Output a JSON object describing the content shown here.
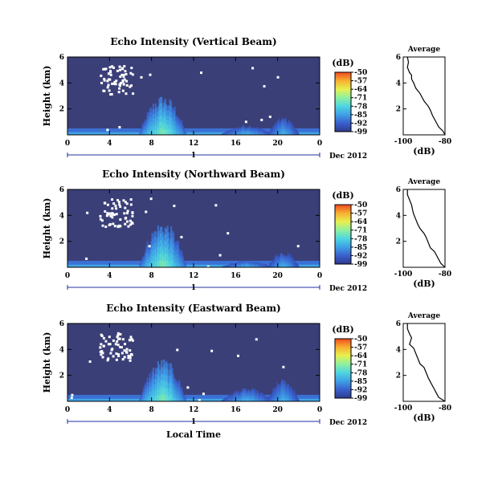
{
  "chart_data": [
    {
      "type": "heatmap",
      "title": "Echo Intensity (Vertical Beam)",
      "ylabel": "Height (km)",
      "xlabel": "",
      "x_ticks": [
        "0",
        "4",
        "8",
        "12",
        "16",
        "20",
        "0"
      ],
      "y_ticks": [
        "2",
        "4",
        "6"
      ],
      "xlim": [
        0,
        24
      ],
      "ylim": [
        0,
        6
      ],
      "day_label": "1",
      "date_label": "Dec 2012",
      "units_label": "(dB)",
      "colorbar_ticks": [
        "-50",
        "-57",
        "-64",
        "-71",
        "-78",
        "-85",
        "-92",
        "-99"
      ],
      "colorbar_colors": [
        "#2e3a8c",
        "#3a5fcd",
        "#3ea0e6",
        "#4fd6e0",
        "#8ef0a0",
        "#e8f050",
        "#f8b030",
        "#f04a20"
      ],
      "background_color": "#3b3f78",
      "blobs": [
        {
          "x": 9.0,
          "h": 3.6,
          "w": 4.5,
          "level": 0.55
        },
        {
          "x": 17.0,
          "h": 0.9,
          "w": 5.0,
          "level": 0.35
        },
        {
          "x": 20.5,
          "h": 1.6,
          "w": 3.0,
          "level": 0.35
        }
      ],
      "average": {
        "title": "Average",
        "xlabel": "(dB)",
        "x_ticks": [
          "-100",
          "-80"
        ],
        "y_ticks": [
          "2",
          "4",
          "6"
        ],
        "xlim": [
          -100,
          -80
        ],
        "points": [
          [
            -98,
            6.0
          ],
          [
            -97.5,
            5.6
          ],
          [
            -98,
            5.2
          ],
          [
            -97,
            4.8
          ],
          [
            -96,
            4.6
          ],
          [
            -96,
            4.3
          ],
          [
            -95,
            4.0
          ],
          [
            -94,
            3.6
          ],
          [
            -92,
            3.2
          ],
          [
            -91,
            2.9
          ],
          [
            -90,
            2.6
          ],
          [
            -88,
            2.2
          ],
          [
            -87,
            1.9
          ],
          [
            -86,
            1.5
          ],
          [
            -85,
            1.2
          ],
          [
            -84,
            0.9
          ],
          [
            -83,
            0.6
          ],
          [
            -81,
            0.3
          ],
          [
            -80,
            0.0
          ]
        ]
      }
    },
    {
      "type": "heatmap",
      "title": "Echo Intensity (Northward Beam)",
      "ylabel": "Height (km)",
      "xlabel": "",
      "x_ticks": [
        "0",
        "4",
        "8",
        "12",
        "16",
        "20",
        "0"
      ],
      "y_ticks": [
        "2",
        "4",
        "6"
      ],
      "xlim": [
        0,
        24
      ],
      "ylim": [
        0,
        6
      ],
      "day_label": "1",
      "date_label": "Dec 2012",
      "units_label": "(dB)",
      "colorbar_ticks": [
        "-50",
        "-57",
        "-64",
        "-71",
        "-78",
        "-85",
        "-92",
        "-99"
      ],
      "colorbar_colors": [
        "#2e3a8c",
        "#3a5fcd",
        "#3ea0e6",
        "#4fd6e0",
        "#8ef0a0",
        "#e8f050",
        "#f8b030",
        "#f04a20"
      ],
      "background_color": "#3b3f78",
      "blobs": [
        {
          "x": 9.0,
          "h": 4.2,
          "w": 4.5,
          "level": 0.55
        },
        {
          "x": 17.0,
          "h": 0.6,
          "w": 5.0,
          "level": 0.35
        },
        {
          "x": 20.5,
          "h": 1.5,
          "w": 3.0,
          "level": 0.35
        }
      ],
      "average": {
        "title": "Average",
        "xlabel": "(dB)",
        "x_ticks": [
          "-100",
          "-80"
        ],
        "y_ticks": [
          "2",
          "4",
          "6"
        ],
        "xlim": [
          -100,
          -80
        ],
        "points": [
          [
            -98,
            6.0
          ],
          [
            -98,
            5.6
          ],
          [
            -97,
            5.2
          ],
          [
            -96,
            4.8
          ],
          [
            -95.5,
            4.4
          ],
          [
            -95,
            4.1
          ],
          [
            -94,
            3.7
          ],
          [
            -93,
            3.3
          ],
          [
            -92,
            3.0
          ],
          [
            -90,
            2.6
          ],
          [
            -89,
            2.3
          ],
          [
            -88,
            1.9
          ],
          [
            -87,
            1.5
          ],
          [
            -85,
            1.2
          ],
          [
            -84,
            0.9
          ],
          [
            -83,
            0.6
          ],
          [
            -82,
            0.3
          ],
          [
            -80,
            0.0
          ]
        ]
      }
    },
    {
      "type": "heatmap",
      "title": "Echo Intensity (Eastward Beam)",
      "ylabel": "Height (km)",
      "xlabel": "Local Time",
      "x_ticks": [
        "0",
        "4",
        "8",
        "12",
        "16",
        "20",
        "0"
      ],
      "y_ticks": [
        "2",
        "4",
        "6"
      ],
      "xlim": [
        0,
        24
      ],
      "ylim": [
        0,
        6
      ],
      "day_label": "1",
      "date_label": "Dec 2012",
      "units_label": "(dB)",
      "colorbar_ticks": [
        "-50",
        "-57",
        "-64",
        "-71",
        "-78",
        "-85",
        "-92",
        "-99"
      ],
      "colorbar_colors": [
        "#2e3a8c",
        "#3a5fcd",
        "#3ea0e6",
        "#4fd6e0",
        "#8ef0a0",
        "#e8f050",
        "#f8b030",
        "#f04a20"
      ],
      "background_color": "#3b3f78",
      "blobs": [
        {
          "x": 9.0,
          "h": 3.9,
          "w": 4.5,
          "level": 0.55
        },
        {
          "x": 17.0,
          "h": 1.2,
          "w": 5.0,
          "level": 0.35
        },
        {
          "x": 20.5,
          "h": 2.0,
          "w": 3.0,
          "level": 0.35
        }
      ],
      "average": {
        "title": "Average",
        "xlabel": "(dB)",
        "x_ticks": [
          "-100",
          "-80"
        ],
        "y_ticks": [
          "2",
          "4",
          "6"
        ],
        "xlim": [
          -100,
          -80
        ],
        "points": [
          [
            -98,
            6.0
          ],
          [
            -98,
            5.6
          ],
          [
            -97,
            5.2
          ],
          [
            -96,
            4.9
          ],
          [
            -97,
            4.4
          ],
          [
            -95,
            4.1
          ],
          [
            -94,
            3.7
          ],
          [
            -93,
            3.3
          ],
          [
            -92,
            2.9
          ],
          [
            -90,
            2.6
          ],
          [
            -89,
            2.2
          ],
          [
            -88,
            1.8
          ],
          [
            -87,
            1.5
          ],
          [
            -86,
            1.2
          ],
          [
            -85,
            0.9
          ],
          [
            -84,
            0.6
          ],
          [
            -83,
            0.3
          ],
          [
            -80,
            0.0
          ]
        ]
      }
    }
  ]
}
